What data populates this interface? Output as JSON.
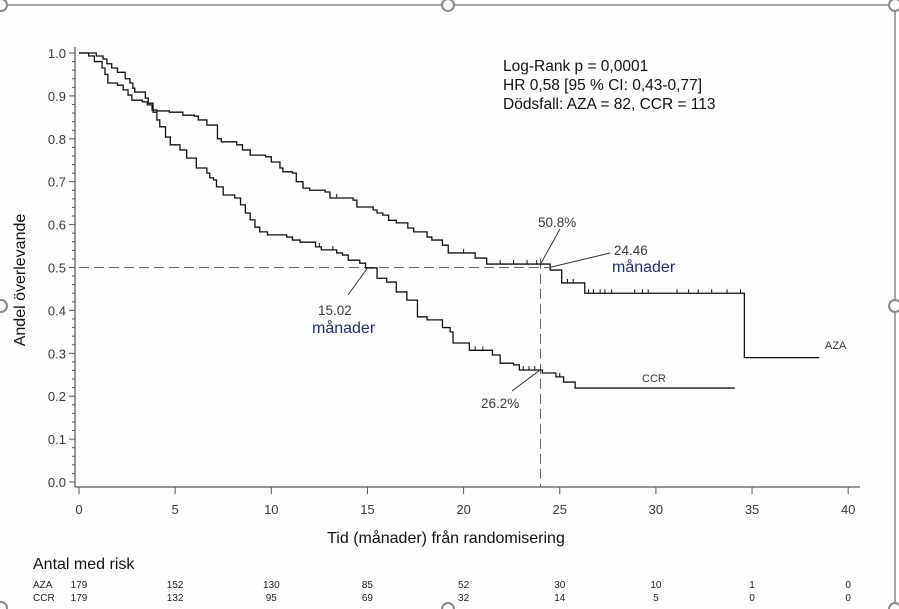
{
  "colors": {
    "curve": "#111111",
    "text": "#111111",
    "annotation_unit": "#1f2d6b",
    "frame": "#8a8a8a"
  },
  "chart_data": {
    "type": "line",
    "subtype": "kaplan-meier-step",
    "title": "",
    "xlabel": "Tid (månader) från randomisering",
    "ylabel": "Andel överlevande",
    "xlim": [
      0,
      40
    ],
    "ylim": [
      0,
      1.0
    ],
    "grid": false,
    "legend": "inline-labels-at-curve-ends",
    "xticks": [
      "0",
      "5",
      "10",
      "15",
      "20",
      "25",
      "30",
      "35",
      "40"
    ],
    "xtick_values": [
      0,
      5,
      10,
      15,
      20,
      25,
      30,
      35,
      40
    ],
    "yticks": [
      "0.0",
      "0.1",
      "0.2",
      "0.3",
      "0.4",
      "0.5",
      "0.6",
      "0.7",
      "0.8",
      "0.9",
      "1.0"
    ],
    "ytick_values": [
      0,
      0.1,
      0.2,
      0.3,
      0.4,
      0.5,
      0.6,
      0.7,
      0.8,
      0.9,
      1.0
    ],
    "series": [
      {
        "name": "AZA",
        "label": "AZA",
        "end_time": 38.5,
        "steps": [
          [
            0,
            1.0
          ],
          [
            0.5,
            0.993
          ],
          [
            0.8,
            0.98
          ],
          [
            1.2,
            0.965
          ],
          [
            1.35,
            0.95
          ],
          [
            1.5,
            0.93
          ],
          [
            2.0,
            0.925
          ],
          [
            2.3,
            0.914
          ],
          [
            2.55,
            0.902
          ],
          [
            2.75,
            0.89
          ],
          [
            3.3,
            0.886
          ],
          [
            3.55,
            0.879
          ],
          [
            3.8,
            0.867
          ],
          [
            4.05,
            0.865
          ],
          [
            4.7,
            0.862
          ],
          [
            5.4,
            0.855
          ],
          [
            6.0,
            0.853
          ],
          [
            6.2,
            0.844
          ],
          [
            6.65,
            0.832
          ],
          [
            7.2,
            0.8
          ],
          [
            7.4,
            0.793
          ],
          [
            8.2,
            0.786
          ],
          [
            8.5,
            0.774
          ],
          [
            8.9,
            0.762
          ],
          [
            9.7,
            0.758
          ],
          [
            10.0,
            0.746
          ],
          [
            10.45,
            0.732
          ],
          [
            10.6,
            0.723
          ],
          [
            11.1,
            0.72
          ],
          [
            11.3,
            0.7
          ],
          [
            11.65,
            0.685
          ],
          [
            12.0,
            0.68
          ],
          [
            12.8,
            0.676
          ],
          [
            13.05,
            0.662
          ],
          [
            14.25,
            0.657
          ],
          [
            14.45,
            0.641
          ],
          [
            15.3,
            0.634
          ],
          [
            15.5,
            0.627
          ],
          [
            15.8,
            0.622
          ],
          [
            16.1,
            0.61
          ],
          [
            16.5,
            0.604
          ],
          [
            17.1,
            0.592
          ],
          [
            17.4,
            0.583
          ],
          [
            18.1,
            0.571
          ],
          [
            18.35,
            0.564
          ],
          [
            18.9,
            0.552
          ],
          [
            19.2,
            0.534
          ],
          [
            20.6,
            0.522
          ],
          [
            21.2,
            0.508
          ],
          [
            24.5,
            0.494
          ],
          [
            25.1,
            0.464
          ],
          [
            26.3,
            0.44
          ],
          [
            34.6,
            0.29
          ]
        ],
        "censor_times": [
          8.9,
          13.4,
          20.0,
          21.9,
          22.6,
          23.3,
          23.8,
          25.4,
          25.7,
          26.5,
          26.75,
          27.1,
          27.35,
          27.7,
          28.9,
          29.3,
          29.6,
          31.1,
          31.7,
          32.2,
          32.9,
          33.7,
          34.4
        ]
      },
      {
        "name": "CCR",
        "label": "CCR",
        "end_time": 34.1,
        "steps": [
          [
            0,
            1.0
          ],
          [
            0.9,
            0.993
          ],
          [
            1.25,
            0.986
          ],
          [
            1.45,
            0.975
          ],
          [
            1.7,
            0.965
          ],
          [
            2.0,
            0.955
          ],
          [
            2.4,
            0.94
          ],
          [
            2.65,
            0.93
          ],
          [
            2.8,
            0.918
          ],
          [
            2.9,
            0.909
          ],
          [
            3.45,
            0.895
          ],
          [
            3.6,
            0.883
          ],
          [
            3.85,
            0.862
          ],
          [
            4.05,
            0.844
          ],
          [
            4.2,
            0.828
          ],
          [
            4.5,
            0.804
          ],
          [
            4.75,
            0.786
          ],
          [
            5.25,
            0.774
          ],
          [
            5.6,
            0.755
          ],
          [
            6.1,
            0.732
          ],
          [
            6.65,
            0.72
          ],
          [
            6.8,
            0.709
          ],
          [
            7.0,
            0.704
          ],
          [
            7.15,
            0.688
          ],
          [
            7.5,
            0.669
          ],
          [
            8.1,
            0.662
          ],
          [
            8.4,
            0.646
          ],
          [
            8.65,
            0.627
          ],
          [
            8.9,
            0.611
          ],
          [
            9.15,
            0.594
          ],
          [
            9.4,
            0.583
          ],
          [
            9.8,
            0.576
          ],
          [
            10.8,
            0.571
          ],
          [
            11.1,
            0.564
          ],
          [
            11.5,
            0.559
          ],
          [
            12.3,
            0.548
          ],
          [
            12.6,
            0.541
          ],
          [
            13.4,
            0.534
          ],
          [
            13.7,
            0.529
          ],
          [
            14.0,
            0.517
          ],
          [
            14.6,
            0.51
          ],
          [
            14.9,
            0.499
          ],
          [
            15.5,
            0.475
          ],
          [
            16.0,
            0.466
          ],
          [
            16.5,
            0.443
          ],
          [
            17.05,
            0.424
          ],
          [
            17.6,
            0.385
          ],
          [
            18.1,
            0.378
          ],
          [
            18.9,
            0.36
          ],
          [
            19.3,
            0.35
          ],
          [
            19.45,
            0.324
          ],
          [
            20.3,
            0.307
          ],
          [
            21.5,
            0.296
          ],
          [
            21.9,
            0.277
          ],
          [
            22.6,
            0.273
          ],
          [
            22.9,
            0.261
          ],
          [
            24.1,
            0.254
          ],
          [
            24.8,
            0.245
          ],
          [
            25.2,
            0.233
          ],
          [
            25.8,
            0.219
          ]
        ],
        "censor_times": [
          12.5,
          13.2,
          20.6,
          21.0,
          23.1,
          23.4,
          23.7,
          25.0
        ]
      }
    ],
    "reference_lines": {
      "horizontal_y": 0.5,
      "horizontal_to_x": 24.46,
      "vertical_x": 24,
      "vertical_top_y": 0.52
    },
    "annotations": [
      {
        "id": "aza-at-24",
        "value": "50.8%",
        "x": 24,
        "y": 0.508
      },
      {
        "id": "aza-median",
        "value": "24.46",
        "unit": "månader",
        "x": 24.46,
        "y": 0.5
      },
      {
        "id": "ccr-median",
        "value": "15.02",
        "unit": "månader",
        "x": 15.02,
        "y": 0.5
      },
      {
        "id": "ccr-at-24",
        "value": "26.2%",
        "x": 24,
        "y": 0.262
      }
    ],
    "stats": [
      "Log-Rank p = 0,0001",
      "HR 0,58 [95 % CI: 0,43-0,77]",
      "Dödsfall: AZA = 82, CCR = 113"
    ],
    "risk_table": {
      "title": "Antal med risk",
      "times": [
        0,
        5,
        10,
        15,
        20,
        25,
        30,
        35,
        40
      ],
      "rows": [
        {
          "label": "AZA",
          "values": [
            "179",
            "152",
            "130",
            "85",
            "52",
            "30",
            "10",
            "1",
            "0"
          ]
        },
        {
          "label": "CCR",
          "values": [
            "179",
            "132",
            "95",
            "69",
            "32",
            "14",
            "5",
            "0",
            "0"
          ]
        }
      ]
    }
  }
}
